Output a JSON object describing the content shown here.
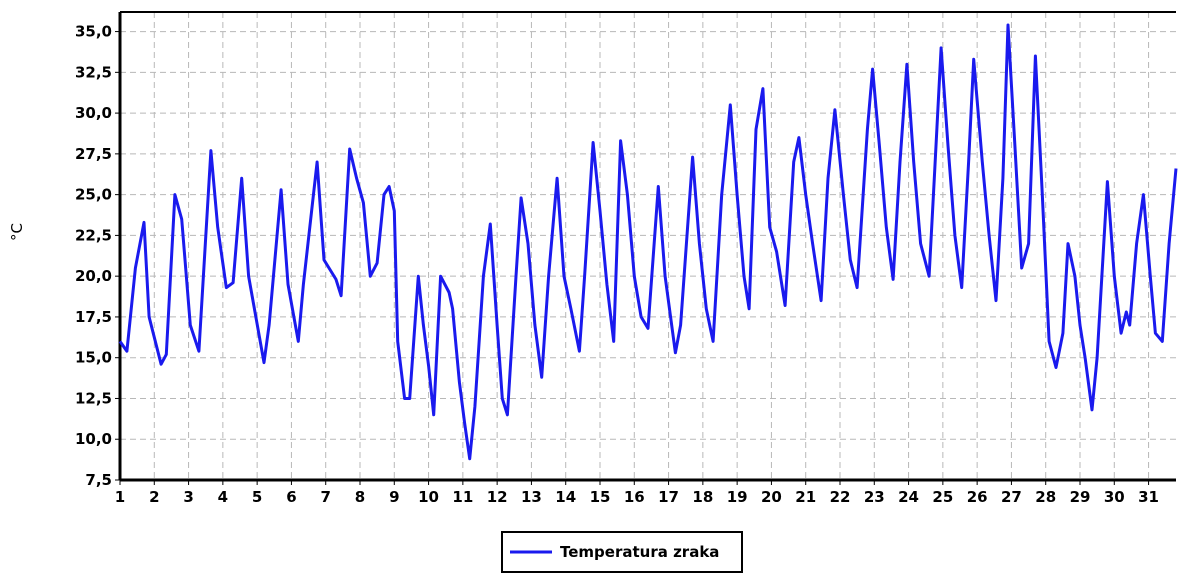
{
  "chart_data": {
    "type": "line",
    "title": "",
    "xlabel": "",
    "ylabel": "°C",
    "xlim": [
      1,
      31.8
    ],
    "ylim": [
      7.5,
      36.2
    ],
    "x_ticks": [
      "1",
      "2",
      "3",
      "4",
      "5",
      "6",
      "7",
      "8",
      "9",
      "10",
      "11",
      "12",
      "13",
      "14",
      "15",
      "16",
      "17",
      "18",
      "19",
      "20",
      "21",
      "22",
      "23",
      "24",
      "25",
      "26",
      "27",
      "28",
      "29",
      "30",
      "31"
    ],
    "y_ticks": [
      "7,5",
      "10,0",
      "12,5",
      "15,0",
      "17,5",
      "20,0",
      "22,5",
      "25,0",
      "27,5",
      "30,0",
      "32,5",
      "35,0"
    ],
    "y_tick_values": [
      7.5,
      10,
      12.5,
      15,
      17.5,
      20,
      22.5,
      25,
      27.5,
      30,
      32.5,
      35
    ],
    "grid": true,
    "legend_position": "bottom-center",
    "series": [
      {
        "name": "Temperatura zraka",
        "color": "#1a1aee",
        "points": [
          [
            1.0,
            16.0
          ],
          [
            1.2,
            15.4
          ],
          [
            1.45,
            20.5
          ],
          [
            1.7,
            23.3
          ],
          [
            1.85,
            17.5
          ],
          [
            2.2,
            14.6
          ],
          [
            2.35,
            15.2
          ],
          [
            2.6,
            25.0
          ],
          [
            2.8,
            23.5
          ],
          [
            3.05,
            17.0
          ],
          [
            3.3,
            15.4
          ],
          [
            3.65,
            27.7
          ],
          [
            3.85,
            23.0
          ],
          [
            4.1,
            19.3
          ],
          [
            4.3,
            19.6
          ],
          [
            4.55,
            26.0
          ],
          [
            4.75,
            20.0
          ],
          [
            5.2,
            14.7
          ],
          [
            5.35,
            17.0
          ],
          [
            5.7,
            25.3
          ],
          [
            5.9,
            19.5
          ],
          [
            6.2,
            16.0
          ],
          [
            6.35,
            19.5
          ],
          [
            6.75,
            27.0
          ],
          [
            6.95,
            21.0
          ],
          [
            7.3,
            19.8
          ],
          [
            7.45,
            18.8
          ],
          [
            7.7,
            27.8
          ],
          [
            7.9,
            26.0
          ],
          [
            8.1,
            24.5
          ],
          [
            8.3,
            20.0
          ],
          [
            8.5,
            20.8
          ],
          [
            8.7,
            25.0
          ],
          [
            8.85,
            25.5
          ],
          [
            9.0,
            24.0
          ],
          [
            9.1,
            16.0
          ],
          [
            9.3,
            12.5
          ],
          [
            9.45,
            12.5
          ],
          [
            9.7,
            20.0
          ],
          [
            9.85,
            17.0
          ],
          [
            10.0,
            14.5
          ],
          [
            10.15,
            11.5
          ],
          [
            10.35,
            20.0
          ],
          [
            10.6,
            19.0
          ],
          [
            10.7,
            18.0
          ],
          [
            10.9,
            13.5
          ],
          [
            11.05,
            11.0
          ],
          [
            11.2,
            8.8
          ],
          [
            11.35,
            12.0
          ],
          [
            11.6,
            20.0
          ],
          [
            11.8,
            23.2
          ],
          [
            12.0,
            17.0
          ],
          [
            12.15,
            12.5
          ],
          [
            12.3,
            11.5
          ],
          [
            12.55,
            20.0
          ],
          [
            12.7,
            24.8
          ],
          [
            12.9,
            22.0
          ],
          [
            13.1,
            17.0
          ],
          [
            13.3,
            13.8
          ],
          [
            13.5,
            20.0
          ],
          [
            13.75,
            26.0
          ],
          [
            13.95,
            20.0
          ],
          [
            14.15,
            18.0
          ],
          [
            14.4,
            15.4
          ],
          [
            14.55,
            20.0
          ],
          [
            14.8,
            28.2
          ],
          [
            15.0,
            24.0
          ],
          [
            15.2,
            19.5
          ],
          [
            15.4,
            16.0
          ],
          [
            15.6,
            28.3
          ],
          [
            15.8,
            25.0
          ],
          [
            16.0,
            20.0
          ],
          [
            16.2,
            17.5
          ],
          [
            16.4,
            16.8
          ],
          [
            16.7,
            25.5
          ],
          [
            16.9,
            20.0
          ],
          [
            17.2,
            15.3
          ],
          [
            17.35,
            17.0
          ],
          [
            17.7,
            27.3
          ],
          [
            17.9,
            22.0
          ],
          [
            18.1,
            18.0
          ],
          [
            18.3,
            16.0
          ],
          [
            18.55,
            25.0
          ],
          [
            18.8,
            30.5
          ],
          [
            19.0,
            25.0
          ],
          [
            19.2,
            20.0
          ],
          [
            19.35,
            18.0
          ],
          [
            19.55,
            29.0
          ],
          [
            19.75,
            31.5
          ],
          [
            19.95,
            23.0
          ],
          [
            20.15,
            21.5
          ],
          [
            20.4,
            18.2
          ],
          [
            20.65,
            27.0
          ],
          [
            20.8,
            28.5
          ],
          [
            21.0,
            25.0
          ],
          [
            21.2,
            22.0
          ],
          [
            21.45,
            18.5
          ],
          [
            21.65,
            26.0
          ],
          [
            21.85,
            30.2
          ],
          [
            22.1,
            25.0
          ],
          [
            22.3,
            21.0
          ],
          [
            22.5,
            19.3
          ],
          [
            22.8,
            29.0
          ],
          [
            22.95,
            32.7
          ],
          [
            23.15,
            28.0
          ],
          [
            23.35,
            23.0
          ],
          [
            23.55,
            19.8
          ],
          [
            23.75,
            27.0
          ],
          [
            23.95,
            33.0
          ],
          [
            24.15,
            27.0
          ],
          [
            24.35,
            22.0
          ],
          [
            24.6,
            20.0
          ],
          [
            24.75,
            26.0
          ],
          [
            24.95,
            34.0
          ],
          [
            25.15,
            28.0
          ],
          [
            25.35,
            22.5
          ],
          [
            25.55,
            19.3
          ],
          [
            25.75,
            27.0
          ],
          [
            25.9,
            33.3
          ],
          [
            26.15,
            27.0
          ],
          [
            26.35,
            22.5
          ],
          [
            26.55,
            18.5
          ],
          [
            26.75,
            26.0
          ],
          [
            26.9,
            35.4
          ],
          [
            27.1,
            28.0
          ],
          [
            27.3,
            20.5
          ],
          [
            27.5,
            22.0
          ],
          [
            27.7,
            33.5
          ],
          [
            27.9,
            25.0
          ],
          [
            28.1,
            16.0
          ],
          [
            28.3,
            14.4
          ],
          [
            28.5,
            16.5
          ],
          [
            28.65,
            22.0
          ],
          [
            28.85,
            20.0
          ],
          [
            29.0,
            17.0
          ],
          [
            29.15,
            15.0
          ],
          [
            29.35,
            11.8
          ],
          [
            29.5,
            15.0
          ],
          [
            29.8,
            25.8
          ],
          [
            30.0,
            20.0
          ],
          [
            30.2,
            16.5
          ],
          [
            30.35,
            17.8
          ],
          [
            30.45,
            17.0
          ],
          [
            30.65,
            22.0
          ],
          [
            30.85,
            25.0
          ],
          [
            31.05,
            20.0
          ],
          [
            31.2,
            16.5
          ],
          [
            31.4,
            16.0
          ],
          [
            31.6,
            22.0
          ],
          [
            31.8,
            26.6
          ]
        ]
      }
    ]
  }
}
